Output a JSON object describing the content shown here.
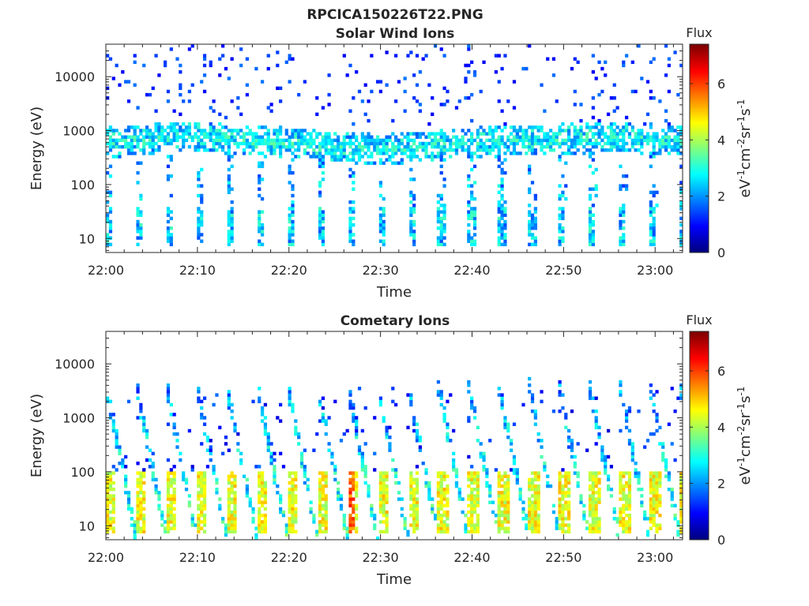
{
  "figure": {
    "title": "RPCICA150226T22.PNG"
  },
  "colorbar": {
    "title": "Flux",
    "label_parts": [
      "eV",
      "-1",
      "cm",
      "-2",
      "sr",
      "-1",
      "s",
      "-1"
    ],
    "ticks": [
      "0",
      "2",
      "4",
      "6"
    ],
    "range": [
      0,
      7.4
    ],
    "colormap": "jet"
  },
  "chart_data": [
    {
      "type": "heatmap",
      "title": "Solar Wind Ions",
      "xlabel": "Time",
      "ylabel": "Energy (eV)",
      "yscale": "log",
      "ylim": [
        5.5,
        40000
      ],
      "y_ticks": [
        10,
        100,
        1000,
        10000
      ],
      "y_tick_labels": [
        "10",
        "100",
        "1000",
        "10000"
      ],
      "xlim": [
        "22:00",
        "23:03"
      ],
      "x_tick_labels": [
        "22:00",
        "22:10",
        "22:20",
        "22:30",
        "22:40",
        "22:50",
        "23:00"
      ],
      "x_tick_minutes": [
        0,
        10,
        20,
        30,
        40,
        50,
        60
      ],
      "xlim_minutes": [
        0,
        63
      ],
      "color_range": [
        0,
        7.4
      ],
      "features": {
        "main_band_energy_eV": [
          [
            0,
            600
          ],
          [
            5,
            700
          ],
          [
            10,
            800
          ],
          [
            15,
            650
          ],
          [
            20,
            600
          ],
          [
            25,
            500
          ],
          [
            30,
            450
          ],
          [
            35,
            500
          ],
          [
            40,
            600
          ],
          [
            45,
            650
          ],
          [
            50,
            700
          ],
          [
            55,
            750
          ],
          [
            60,
            700
          ],
          [
            63,
            650
          ]
        ],
        "main_band_flux_typical": 2.8,
        "sweep_period_min": 3.3,
        "low_energy_cluster_eV": [
          10,
          30
        ],
        "low_energy_cluster_flux_typical": 2.4,
        "max_flux_approx": 4.0
      }
    },
    {
      "type": "heatmap",
      "title": "Cometary Ions",
      "xlabel": "Time",
      "ylabel": "Energy (eV)",
      "yscale": "log",
      "ylim": [
        5.5,
        40000
      ],
      "y_ticks": [
        10,
        100,
        1000,
        10000
      ],
      "y_tick_labels": [
        "10",
        "100",
        "1000",
        "10000"
      ],
      "xlim": [
        "22:00",
        "23:03"
      ],
      "x_tick_labels": [
        "22:00",
        "22:10",
        "22:20",
        "22:30",
        "22:40",
        "22:50",
        "23:00"
      ],
      "x_tick_minutes": [
        0,
        10,
        20,
        30,
        40,
        50,
        60
      ],
      "xlim_minutes": [
        0,
        63
      ],
      "color_range": [
        0,
        7.4
      ],
      "features": {
        "sweep_period_min": 3.3,
        "sweep_energy_range_eV": [
          6,
          4000
        ],
        "low_energy_peak_eV": [
          7,
          100
        ],
        "low_energy_peak_flux_typical": 4.5,
        "max_flux_approx": 5.8,
        "max_flux_times_min": [
          26.5,
          32.5,
          55.0
        ]
      }
    }
  ]
}
